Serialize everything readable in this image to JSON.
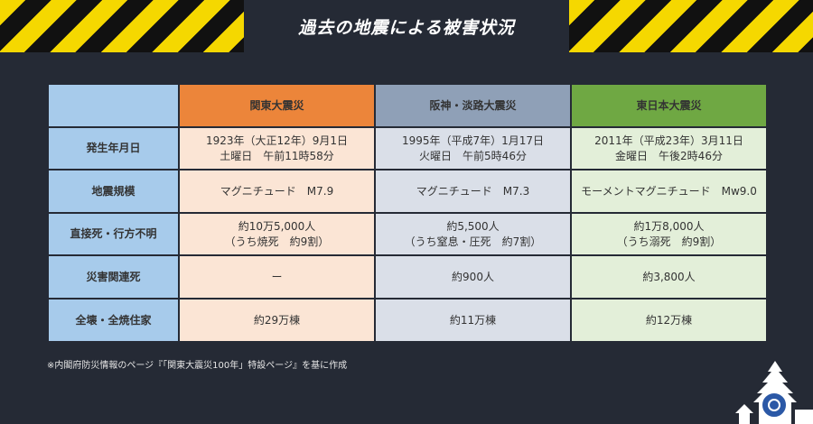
{
  "title": "過去の地震による被害状況",
  "columns": [
    {
      "label": "関東大震災",
      "color": "#ec853a"
    },
    {
      "label": "阪神・淡路大震災",
      "color": "#8fa0b7"
    },
    {
      "label": "東日本大震災",
      "color": "#6fa843"
    }
  ],
  "rows": [
    {
      "label": "発生年月日",
      "cells": [
        [
          "1923年（大正12年）9月1日",
          "土曜日　午前11時58分"
        ],
        [
          "1995年（平成7年）1月17日",
          "火曜日　午前5時46分"
        ],
        [
          "2011年（平成23年）3月11日",
          "金曜日　午後2時46分"
        ]
      ]
    },
    {
      "label": "地震規模",
      "cells": [
        [
          "マグニチュード　M7.9"
        ],
        [
          "マグニチュード　M7.3"
        ],
        [
          "モーメントマグニチュード　Mw9.0"
        ]
      ]
    },
    {
      "label": "直接死・行方不明",
      "cells": [
        [
          "約10万5,000人",
          "（うち焼死　約9割）"
        ],
        [
          "約5,500人",
          "（うち窒息・圧死　約7割）"
        ],
        [
          "約1万8,000人",
          "（うち溺死　約9割）"
        ]
      ]
    },
    {
      "label": "災害関連死",
      "cells": [
        [
          "ー"
        ],
        [
          "約900人"
        ],
        [
          "約3,800人"
        ]
      ]
    },
    {
      "label": "全壊・全焼住家",
      "cells": [
        [
          "約29万棟"
        ],
        [
          "約11万棟"
        ],
        [
          "約12万棟"
        ]
      ]
    }
  ],
  "footnote": "※内閣府防災情報のページ『「関東大震災100年」特設ページ』を基に作成",
  "colors": {
    "background": "#252a35",
    "header_label": "#a7cbeb",
    "kanto_cell": "#fbe5d5",
    "hanshin_cell": "#dadfe8",
    "higashi_cell": "#e3efd9",
    "stripe_yellow": "#f5d800"
  },
  "icons": [
    "castle-silhouette-icon",
    "emblem-logo-icon"
  ]
}
